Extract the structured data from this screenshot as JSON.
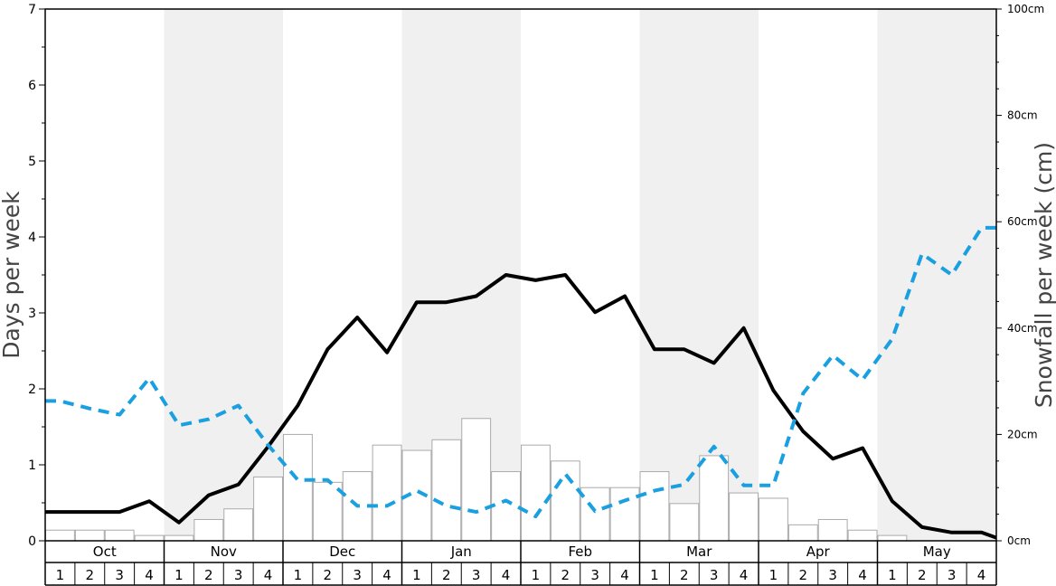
{
  "chart_data": {
    "type": "bar+line",
    "ylabel_left": "Days per week",
    "ylabel_right": "Snowfall per week (cm)",
    "ylim_left": [
      0,
      7
    ],
    "ylim_right": [
      0,
      100
    ],
    "yticks_left": [
      "0",
      "1",
      "2",
      "3",
      "4",
      "5",
      "6",
      "7"
    ],
    "yticks_right": [
      "0cm",
      "20cm",
      "40cm",
      "60cm",
      "80cm",
      "100cm"
    ],
    "months": [
      "Oct",
      "Nov",
      "Dec",
      "Jan",
      "Feb",
      "Mar",
      "Apr",
      "May"
    ],
    "weeks": [
      "1",
      "2",
      "3",
      "4"
    ],
    "shaded_months": [
      "Nov",
      "Jan",
      "Mar",
      "May"
    ],
    "colors": {
      "bars_fill": "#ffffff",
      "bars_stroke": "#aaaaaa",
      "solid_line": "#000000",
      "dashed_line": "#1a9fe0",
      "shade": "#f0f0f0"
    },
    "series": [
      {
        "kind": "bar",
        "axis": "right",
        "values": [
          2,
          2,
          2,
          1,
          1,
          4,
          6,
          12,
          20,
          11,
          13,
          18,
          17,
          19,
          23,
          13,
          18,
          15,
          10,
          10,
          13,
          7,
          16,
          9,
          8,
          3,
          4,
          2,
          1,
          0,
          0,
          0
        ]
      },
      {
        "kind": "line",
        "style": "solid",
        "axis": "left",
        "values": [
          0.38,
          0.38,
          0.38,
          0.52,
          0.24,
          0.6,
          0.74,
          1.24,
          1.78,
          2.52,
          2.94,
          2.48,
          3.14,
          3.14,
          3.22,
          3.5,
          3.43,
          3.5,
          3.01,
          3.22,
          2.52,
          2.52,
          2.34,
          2.8,
          1.98,
          1.44,
          1.08,
          1.22,
          0.52,
          0.18,
          0.11,
          0.11
        ]
      },
      {
        "kind": "line",
        "style": "dashed",
        "axis": "left",
        "values": [
          1.84,
          1.74,
          1.66,
          2.14,
          1.52,
          1.6,
          1.78,
          1.26,
          0.8,
          0.8,
          0.46,
          0.46,
          0.66,
          0.46,
          0.38,
          0.53,
          0.32,
          0.88,
          0.39,
          0.53,
          0.66,
          0.74,
          1.24,
          0.73,
          0.73,
          1.94,
          2.44,
          2.12,
          2.66,
          3.78,
          3.5,
          4.12
        ]
      }
    ]
  }
}
